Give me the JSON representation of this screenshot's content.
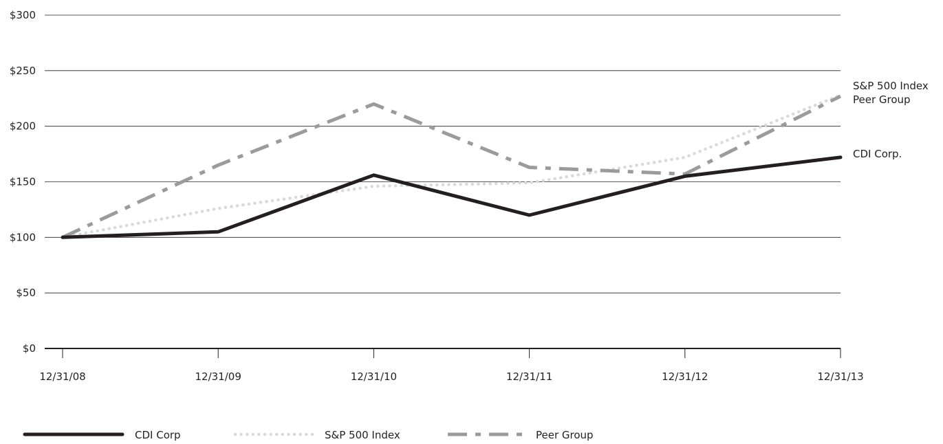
{
  "chart_data": {
    "type": "line",
    "title": "",
    "xlabel": "",
    "ylabel": "",
    "categories": [
      "12/31/08",
      "12/31/09",
      "12/31/10",
      "12/31/11",
      "12/31/12",
      "12/31/13"
    ],
    "y_ticks": [
      "$0",
      "$50",
      "$100",
      "$150",
      "$200",
      "$250",
      "$300"
    ],
    "ylim": [
      0,
      300
    ],
    "grid": true,
    "series": [
      {
        "name": "CDI Corp",
        "end_label": "CDI Corp.",
        "style": "solid",
        "color": "#231f20",
        "values": [
          100,
          105,
          156,
          120,
          155,
          172
        ]
      },
      {
        "name": "S&P 500 Index",
        "end_label": "S&P 500 Index",
        "style": "dotted",
        "color": "#d9d9d9",
        "values": [
          100,
          126,
          146,
          149,
          172,
          228
        ]
      },
      {
        "name": "Peer Group",
        "end_label": "Peer Group",
        "style": "dashdot",
        "color": "#9b9b9b",
        "values": [
          100,
          165,
          220,
          163,
          157,
          227
        ]
      }
    ],
    "legend": {
      "position": "bottom-left"
    }
  }
}
